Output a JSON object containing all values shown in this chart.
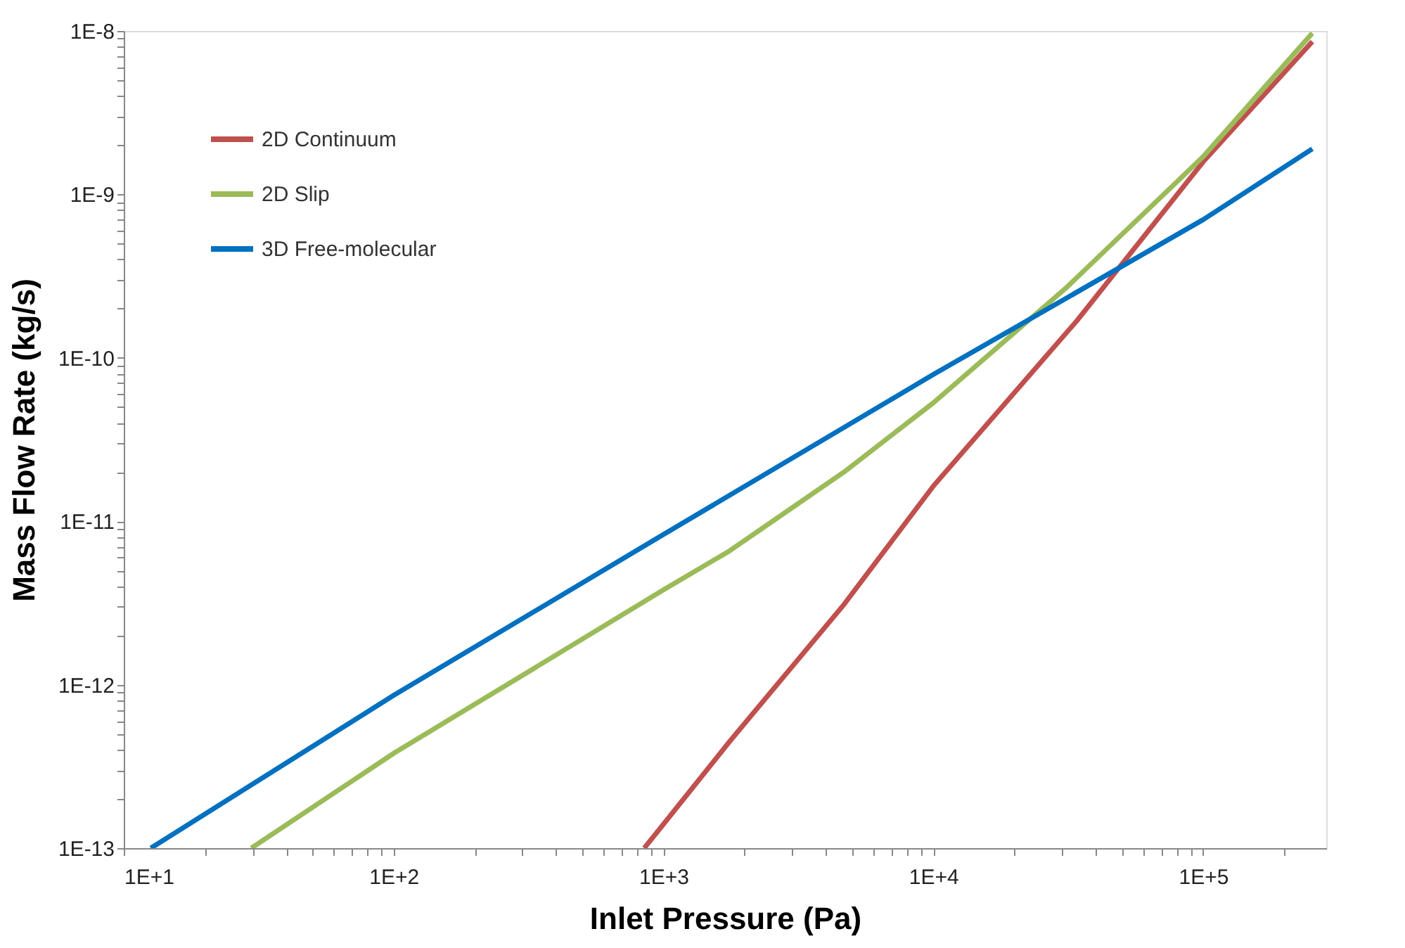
{
  "chart_data": {
    "type": "line",
    "xlabel": "Inlet Pressure (Pa)",
    "ylabel": "Mass Flow Rate (kg/s)",
    "log": "xy",
    "grid": false,
    "legend": "top left",
    "marker": "none",
    "line_style": "solid",
    "xlim": [
      10,
      286000
    ],
    "ylim": [
      1e-13,
      1e-08
    ],
    "xticks": [
      {
        "value": 10,
        "label": "1E+1"
      },
      {
        "value": 20,
        "label": null
      },
      {
        "value": 30,
        "label": null
      },
      {
        "value": 40,
        "label": null
      },
      {
        "value": 50,
        "label": null
      },
      {
        "value": 60,
        "label": null
      },
      {
        "value": 70,
        "label": null
      },
      {
        "value": 80,
        "label": null
      },
      {
        "value": 90,
        "label": null
      },
      {
        "value": 100,
        "label": "1E+2"
      },
      {
        "value": 200,
        "label": null
      },
      {
        "value": 300,
        "label": null
      },
      {
        "value": 400,
        "label": null
      },
      {
        "value": 500,
        "label": null
      },
      {
        "value": 600,
        "label": null
      },
      {
        "value": 700,
        "label": null
      },
      {
        "value": 800,
        "label": null
      },
      {
        "value": 900,
        "label": null
      },
      {
        "value": 1000,
        "label": "1E+3"
      },
      {
        "value": 2000,
        "label": null
      },
      {
        "value": 3000,
        "label": null
      },
      {
        "value": 4000,
        "label": null
      },
      {
        "value": 5000,
        "label": null
      },
      {
        "value": 6000,
        "label": null
      },
      {
        "value": 7000,
        "label": null
      },
      {
        "value": 8000,
        "label": null
      },
      {
        "value": 9000,
        "label": null
      },
      {
        "value": 10000,
        "label": "1E+4"
      },
      {
        "value": 20000,
        "label": null
      },
      {
        "value": 30000,
        "label": null
      },
      {
        "value": 40000,
        "label": null
      },
      {
        "value": 50000,
        "label": null
      },
      {
        "value": 60000,
        "label": null
      },
      {
        "value": 70000,
        "label": null
      },
      {
        "value": 80000,
        "label": null
      },
      {
        "value": 90000,
        "label": null
      },
      {
        "value": 100000,
        "label": "1E+5"
      },
      {
        "value": 200000,
        "label": null
      }
    ],
    "yticks": [
      {
        "value": 1e-13,
        "label": "1E-13"
      },
      {
        "value": 2e-13,
        "label": null
      },
      {
        "value": 3e-13,
        "label": null
      },
      {
        "value": 4e-13,
        "label": null
      },
      {
        "value": 5e-13,
        "label": null
      },
      {
        "value": 6e-13,
        "label": null
      },
      {
        "value": 7e-13,
        "label": null
      },
      {
        "value": 8e-13,
        "label": null
      },
      {
        "value": 9e-13,
        "label": null
      },
      {
        "value": 1e-12,
        "label": "1E-12"
      },
      {
        "value": 2e-12,
        "label": null
      },
      {
        "value": 3e-12,
        "label": null
      },
      {
        "value": 4e-12,
        "label": null
      },
      {
        "value": 5e-12,
        "label": null
      },
      {
        "value": 6e-12,
        "label": null
      },
      {
        "value": 7e-12,
        "label": null
      },
      {
        "value": 8e-12,
        "label": null
      },
      {
        "value": 9e-12,
        "label": null
      },
      {
        "value": 1e-11,
        "label": "1E-11"
      },
      {
        "value": 2e-11,
        "label": null
      },
      {
        "value": 3e-11,
        "label": null
      },
      {
        "value": 4e-11,
        "label": null
      },
      {
        "value": 5e-11,
        "label": null
      },
      {
        "value": 6e-11,
        "label": null
      },
      {
        "value": 7e-11,
        "label": null
      },
      {
        "value": 8e-11,
        "label": null
      },
      {
        "value": 9e-11,
        "label": null
      },
      {
        "value": 1e-10,
        "label": "1E-10"
      },
      {
        "value": 2e-10,
        "label": null
      },
      {
        "value": 3e-10,
        "label": null
      },
      {
        "value": 4e-10,
        "label": null
      },
      {
        "value": 5e-10,
        "label": null
      },
      {
        "value": 6e-10,
        "label": null
      },
      {
        "value": 7e-10,
        "label": null
      },
      {
        "value": 8e-10,
        "label": null
      },
      {
        "value": 9e-10,
        "label": null
      },
      {
        "value": 1e-09,
        "label": "1E-9"
      },
      {
        "value": 2e-09,
        "label": null
      },
      {
        "value": 3e-09,
        "label": null
      },
      {
        "value": 4e-09,
        "label": null
      },
      {
        "value": 5e-09,
        "label": null
      },
      {
        "value": 6e-09,
        "label": null
      },
      {
        "value": 7e-09,
        "label": null
      },
      {
        "value": 8e-09,
        "label": null
      },
      {
        "value": 9e-09,
        "label": null
      },
      {
        "value": 1e-08,
        "label": "1E-8"
      }
    ],
    "series": [
      {
        "name": "2D Continuum",
        "color": "#c0504d",
        "x": [
          849,
          1000,
          1760,
          4670,
          10000,
          34200,
          100000,
          254000
        ],
        "values": [
          1e-13,
          1.4e-13,
          4.5e-13,
          3.1e-12,
          1.64e-11,
          1.7e-10,
          1.58e-09,
          8.6e-09
        ]
      },
      {
        "name": "2D Slip",
        "color": "#9bbb59",
        "x": [
          29.7,
          100,
          1000,
          1760,
          4670,
          10000,
          31000,
          100000,
          254000
        ],
        "values": [
          1e-13,
          3.8e-13,
          3.8e-12,
          6.6e-12,
          2e-11,
          5.3e-11,
          2.67e-10,
          1.7e-09,
          9.7e-09
        ]
      },
      {
        "name": "3D Free-molecular",
        "color": "#0070c0",
        "x": [
          12.6,
          100,
          1000,
          10000,
          100000,
          254000
        ],
        "values": [
          1e-13,
          8.6e-13,
          8.3e-12,
          7.9e-11,
          7e-10,
          1.9e-09
        ]
      }
    ]
  }
}
